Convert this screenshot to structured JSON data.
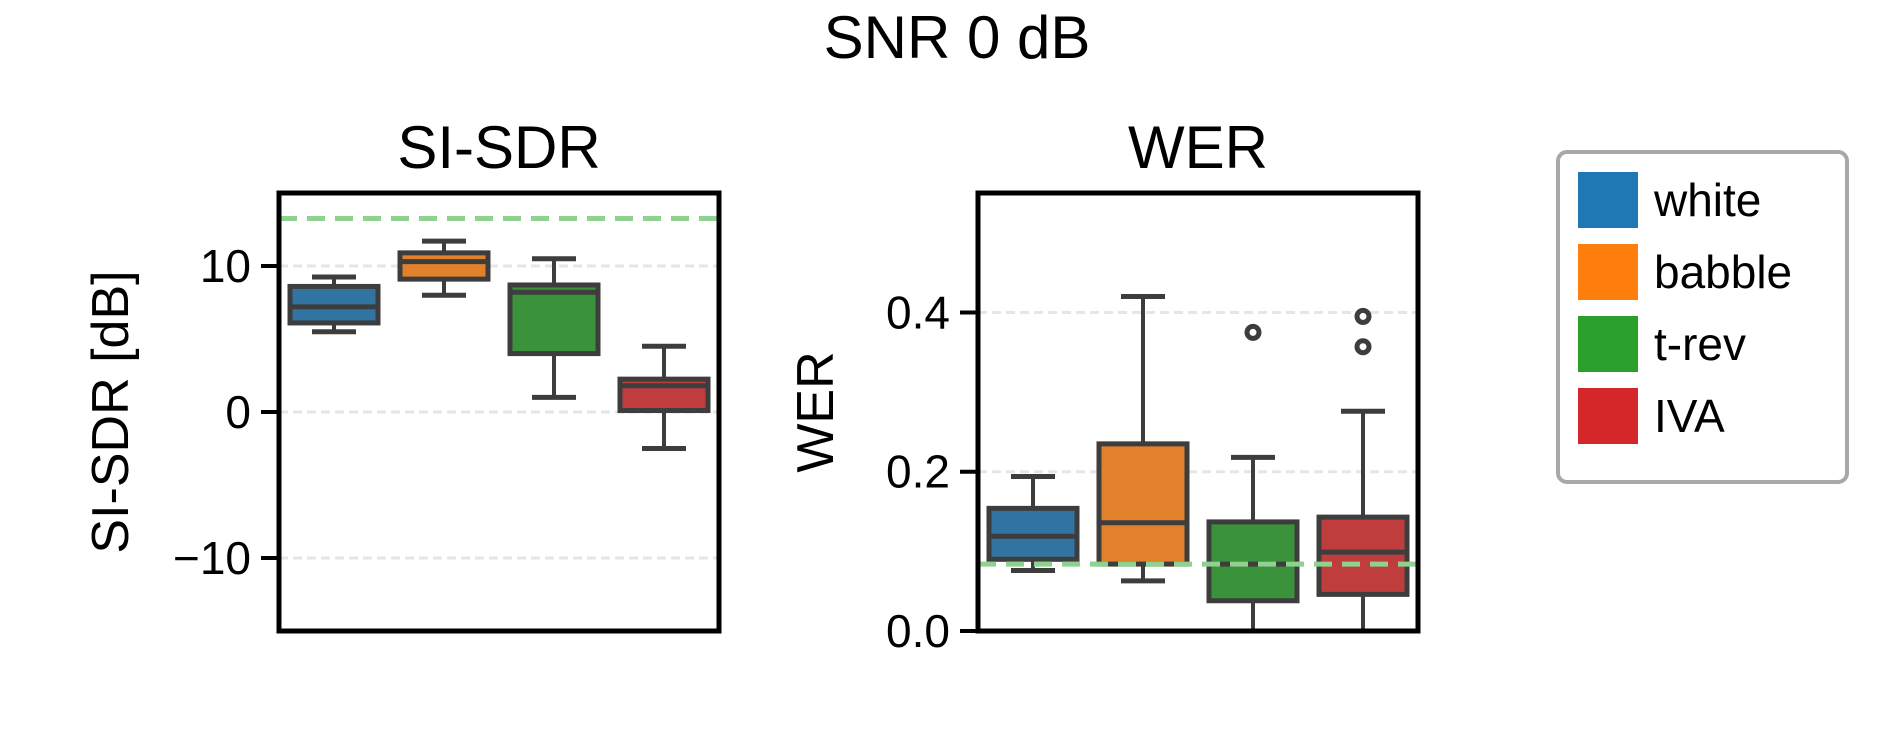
{
  "figure_title": "SNR 0 dB",
  "colors": {
    "white": "#1f77b4",
    "babble": "#ff7f0e",
    "t-rev": "#2ca02c",
    "IVA": "#d62728",
    "reference_line": "#8fd18f"
  },
  "box_fill_colors": [
    "#3274a1",
    "#e1812c",
    "#3a923a",
    "#c03d3e"
  ],
  "legend": {
    "placement": "right",
    "entries": [
      "white",
      "babble",
      "t-rev",
      "IVA"
    ]
  },
  "chart_data": [
    {
      "type": "box",
      "title": "SI-SDR",
      "ylabel": "SI-SDR [dB]",
      "xlabel": "",
      "ylim": [
        -15,
        15
      ],
      "yticks": [
        10,
        0,
        -10
      ],
      "ytick_labels": [
        "10",
        "0",
        "−10"
      ],
      "grid": "horizontal dashed",
      "reference_line": 13.25,
      "categories": [
        "white",
        "babble",
        "t-rev",
        "IVA"
      ],
      "boxes": [
        {
          "whislo": 5.5,
          "q1": 6.1,
          "med": 7.2,
          "q3": 8.6,
          "whishi": 9.25,
          "fliers": []
        },
        {
          "whislo": 8.0,
          "q1": 9.1,
          "med": 10.3,
          "q3": 10.9,
          "whishi": 11.7,
          "fliers": []
        },
        {
          "whislo": 1.0,
          "q1": 4.0,
          "med": 8.2,
          "q3": 8.7,
          "whishi": 10.5,
          "fliers": []
        },
        {
          "whislo": -2.5,
          "q1": 0.1,
          "med": 1.8,
          "q3": 2.25,
          "whishi": 4.5,
          "fliers": []
        }
      ]
    },
    {
      "type": "box",
      "title": "WER",
      "ylabel": "WER",
      "xlabel": "",
      "ylim": [
        0,
        0.55
      ],
      "yticks": [
        0.4,
        0.2,
        0.0
      ],
      "ytick_labels": [
        "0.4",
        "0.2",
        "0.0"
      ],
      "grid": "horizontal dashed",
      "reference_line": 0.084,
      "categories": [
        "white",
        "babble",
        "t-rev",
        "IVA"
      ],
      "boxes": [
        {
          "whislo": 0.076,
          "q1": 0.09,
          "med": 0.119,
          "q3": 0.154,
          "whishi": 0.194,
          "fliers": []
        },
        {
          "whislo": 0.063,
          "q1": 0.084,
          "med": 0.136,
          "q3": 0.235,
          "whishi": 0.42,
          "fliers": []
        },
        {
          "whislo": 0.0,
          "q1": 0.038,
          "med": 0.084,
          "q3": 0.137,
          "whishi": 0.218,
          "fliers": [
            0.375
          ]
        },
        {
          "whislo": 0.0,
          "q1": 0.046,
          "med": 0.099,
          "q3": 0.143,
          "whishi": 0.276,
          "fliers": [
            0.395,
            0.357
          ]
        }
      ]
    }
  ]
}
